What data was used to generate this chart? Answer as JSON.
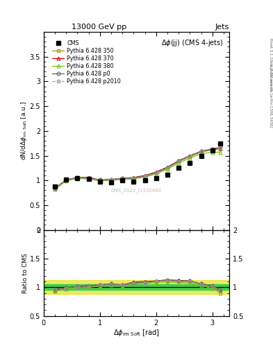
{
  "title_top": "13000 GeV pp",
  "title_right": "Jets",
  "plot_title": "$\\Delta\\phi$(jj) (CMS 4-jets)",
  "watermark": "CMS_2021_I1932460",
  "cms_x": [
    0.2,
    0.4,
    0.6,
    0.8,
    1.0,
    1.2,
    1.4,
    1.6,
    1.8,
    2.0,
    2.2,
    2.4,
    2.6,
    2.8,
    3.0,
    3.14
  ],
  "cms_y": [
    0.88,
    1.02,
    1.05,
    1.03,
    0.97,
    0.96,
    1.0,
    0.97,
    1.0,
    1.05,
    1.12,
    1.25,
    1.35,
    1.5,
    1.6,
    1.75
  ],
  "p350_x": [
    0.2,
    0.4,
    0.6,
    0.8,
    1.0,
    1.2,
    1.4,
    1.6,
    1.8,
    2.0,
    2.2,
    2.4,
    2.6,
    2.8,
    3.0,
    3.14
  ],
  "p350_y": [
    0.83,
    1.0,
    1.05,
    1.05,
    1.0,
    1.01,
    1.03,
    1.04,
    1.08,
    1.15,
    1.25,
    1.38,
    1.48,
    1.57,
    1.62,
    1.63
  ],
  "p370_x": [
    0.2,
    0.4,
    0.6,
    0.8,
    1.0,
    1.2,
    1.4,
    1.6,
    1.8,
    2.0,
    2.2,
    2.4,
    2.6,
    2.8,
    3.0,
    3.14
  ],
  "p370_y": [
    0.84,
    1.01,
    1.06,
    1.06,
    1.01,
    1.02,
    1.04,
    1.06,
    1.1,
    1.17,
    1.27,
    1.4,
    1.5,
    1.59,
    1.63,
    1.65
  ],
  "p380_x": [
    0.2,
    0.4,
    0.6,
    0.8,
    1.0,
    1.2,
    1.4,
    1.6,
    1.8,
    2.0,
    2.2,
    2.4,
    2.6,
    2.8,
    3.0,
    3.14
  ],
  "p380_y": [
    0.82,
    0.99,
    1.04,
    1.03,
    0.99,
    1.0,
    1.02,
    1.03,
    1.07,
    1.13,
    1.23,
    1.35,
    1.45,
    1.54,
    1.57,
    1.57
  ],
  "pp0_x": [
    0.2,
    0.4,
    0.6,
    0.8,
    1.0,
    1.2,
    1.4,
    1.6,
    1.8,
    2.0,
    2.2,
    2.4,
    2.6,
    2.8,
    3.0,
    3.14
  ],
  "pp0_y": [
    0.85,
    1.01,
    1.06,
    1.05,
    1.01,
    1.02,
    1.04,
    1.05,
    1.09,
    1.16,
    1.26,
    1.39,
    1.5,
    1.59,
    1.64,
    1.67
  ],
  "pp2010_x": [
    0.2,
    0.4,
    0.6,
    0.8,
    1.0,
    1.2,
    1.4,
    1.6,
    1.8,
    2.0,
    2.2,
    2.4,
    2.6,
    2.8,
    3.0,
    3.14
  ],
  "pp2010_y": [
    0.84,
    1.0,
    1.05,
    1.04,
    1.0,
    1.01,
    1.03,
    1.04,
    1.08,
    1.15,
    1.25,
    1.38,
    1.49,
    1.58,
    1.62,
    1.65
  ],
  "color_cms": "#000000",
  "color_p350": "#999900",
  "color_p370": "#cc0000",
  "color_p380": "#66cc00",
  "color_pp0": "#666666",
  "color_pp2010": "#999999",
  "band_green_lo": 0.95,
  "band_green_hi": 1.05,
  "band_yellow_lo": 0.88,
  "band_yellow_hi": 1.12,
  "ylim_main": [
    0.0,
    4.0
  ],
  "ylim_ratio": [
    0.5,
    2.0
  ],
  "xlim": [
    0.0,
    3.3
  ],
  "ratio_p350": [
    0.94,
    0.98,
    1.0,
    1.02,
    1.03,
    1.05,
    1.03,
    1.07,
    1.08,
    1.1,
    1.12,
    1.1,
    1.1,
    1.05,
    1.01,
    0.93
  ],
  "ratio_p370": [
    0.95,
    0.99,
    1.01,
    1.03,
    1.04,
    1.06,
    1.04,
    1.09,
    1.1,
    1.11,
    1.13,
    1.12,
    1.11,
    1.06,
    1.02,
    0.94
  ],
  "ratio_p380": [
    0.93,
    0.97,
    0.99,
    1.0,
    1.02,
    1.04,
    1.02,
    1.06,
    1.07,
    1.08,
    1.1,
    1.08,
    1.07,
    1.03,
    0.98,
    0.9
  ],
  "ratio_pp0": [
    0.97,
    0.99,
    1.01,
    1.02,
    1.04,
    1.06,
    1.04,
    1.08,
    1.09,
    1.1,
    1.13,
    1.11,
    1.11,
    1.06,
    1.03,
    0.95
  ],
  "ratio_pp2010": [
    0.95,
    0.98,
    1.0,
    1.01,
    1.03,
    1.05,
    1.03,
    1.07,
    1.08,
    1.1,
    1.12,
    1.1,
    1.1,
    1.05,
    1.01,
    0.94
  ]
}
